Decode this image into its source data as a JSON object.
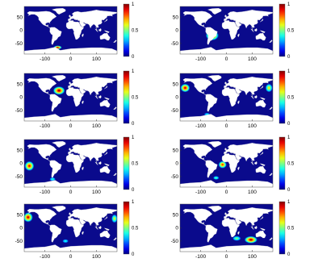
{
  "chart_data": [
    {
      "type": "heatmap",
      "title": "",
      "xlabel": "",
      "ylabel": "",
      "xlim": [
        -180,
        180
      ],
      "ylim": [
        -90,
        90
      ],
      "xticks": [
        "-100",
        "0",
        "100"
      ],
      "yticks": [
        "50",
        "0",
        "-50"
      ],
      "colorbar": {
        "range": [
          0,
          1
        ],
        "ticks": [
          "1",
          "0.5",
          "0"
        ]
      },
      "hotspots": [
        {
          "lon": -50,
          "lat": -65,
          "intensity": 1.0,
          "spread_lon": 14,
          "spread_lat": 6
        }
      ]
    },
    {
      "type": "heatmap",
      "title": "",
      "xlabel": "",
      "ylabel": "",
      "xlim": [
        -180,
        180
      ],
      "ylim": [
        -90,
        90
      ],
      "xticks": [
        "-100",
        "0",
        "100"
      ],
      "yticks": [
        "50",
        "0",
        "-50"
      ],
      "colorbar": {
        "range": [
          0,
          1
        ],
        "ticks": [
          "1",
          "0.5",
          "0"
        ]
      },
      "hotspots": [
        {
          "lon": -55,
          "lat": -20,
          "intensity": 0.95,
          "spread_lon": 22,
          "spread_lat": 16
        }
      ]
    },
    {
      "type": "heatmap",
      "title": "",
      "xlabel": "",
      "ylabel": "",
      "xlim": [
        -180,
        180
      ],
      "ylim": [
        -90,
        90
      ],
      "xticks": [
        "-100",
        "0",
        "100"
      ],
      "yticks": [
        "50",
        "0",
        "-50"
      ],
      "colorbar": {
        "range": [
          0,
          1
        ],
        "ticks": [
          "1",
          "0.5",
          "0"
        ]
      },
      "hotspots": [
        {
          "lon": -45,
          "lat": 25,
          "intensity": 1.0,
          "spread_lon": 20,
          "spread_lat": 14
        }
      ]
    },
    {
      "type": "heatmap",
      "title": "",
      "xlabel": "",
      "ylabel": "",
      "xlim": [
        -180,
        180
      ],
      "ylim": [
        -90,
        90
      ],
      "xticks": [
        "-100",
        "0",
        "100"
      ],
      "yticks": [
        "50",
        "0",
        "-50"
      ],
      "colorbar": {
        "range": [
          0,
          1
        ],
        "ticks": [
          "1",
          "0.5",
          "0"
        ]
      },
      "hotspots": [
        {
          "lon": -160,
          "lat": 35,
          "intensity": 0.95,
          "spread_lon": 16,
          "spread_lat": 14
        },
        {
          "lon": 165,
          "lat": 35,
          "intensity": 0.6,
          "spread_lon": 12,
          "spread_lat": 14
        },
        {
          "lon": -75,
          "lat": -65,
          "intensity": 0.3,
          "spread_lon": 10,
          "spread_lat": 5
        }
      ]
    },
    {
      "type": "heatmap",
      "title": "",
      "xlabel": "",
      "ylabel": "",
      "xlim": [
        -180,
        180
      ],
      "ylim": [
        -90,
        90
      ],
      "xticks": [
        "-100",
        "0",
        "100"
      ],
      "yticks": [
        "50",
        "0",
        "-50"
      ],
      "colorbar": {
        "range": [
          0,
          1
        ],
        "ticks": [
          "1",
          "0.5",
          "0"
        ]
      },
      "hotspots": [
        {
          "lon": -160,
          "lat": -10,
          "intensity": 0.9,
          "spread_lon": 16,
          "spread_lat": 16
        },
        {
          "lon": -70,
          "lat": -60,
          "intensity": 0.35,
          "spread_lon": 10,
          "spread_lat": 6
        }
      ]
    },
    {
      "type": "heatmap",
      "title": "",
      "xlabel": "",
      "ylabel": "",
      "xlim": [
        -180,
        180
      ],
      "ylim": [
        -90,
        90
      ],
      "xticks": [
        "-100",
        "0",
        "100"
      ],
      "yticks": [
        "50",
        "0",
        "-50"
      ],
      "colorbar": {
        "range": [
          0,
          1
        ],
        "ticks": [
          "1",
          "0.5",
          "0"
        ]
      },
      "hotspots": [
        {
          "lon": -15,
          "lat": -5,
          "intensity": 0.85,
          "spread_lon": 14,
          "spread_lat": 12
        },
        {
          "lon": -40,
          "lat": -55,
          "intensity": 0.4,
          "spread_lon": 10,
          "spread_lat": 6
        }
      ]
    },
    {
      "type": "heatmap",
      "title": "",
      "xlabel": "",
      "ylabel": "",
      "xlim": [
        -180,
        180
      ],
      "ylim": [
        -90,
        90
      ],
      "xticks": [
        "-100",
        "0",
        "100"
      ],
      "yticks": [
        "50",
        "0",
        "-50"
      ],
      "colorbar": {
        "range": [
          0,
          1
        ],
        "ticks": [
          "1",
          "0.5",
          "0"
        ]
      },
      "hotspots": [
        {
          "lon": -165,
          "lat": 40,
          "intensity": 0.95,
          "spread_lon": 16,
          "spread_lat": 16
        },
        {
          "lon": 170,
          "lat": 35,
          "intensity": 0.55,
          "spread_lon": 10,
          "spread_lat": 14
        },
        {
          "lon": -20,
          "lat": -50,
          "intensity": 0.3,
          "spread_lon": 10,
          "spread_lat": 6
        }
      ]
    },
    {
      "type": "heatmap",
      "title": "",
      "xlabel": "",
      "ylabel": "",
      "xlim": [
        -180,
        180
      ],
      "ylim": [
        -90,
        90
      ],
      "xticks": [
        "-100",
        "0",
        "100"
      ],
      "yticks": [
        "50",
        "0",
        "-50"
      ],
      "colorbar": {
        "range": [
          0,
          1
        ],
        "ticks": [
          "1",
          "0.5",
          "0"
        ]
      },
      "hotspots": [
        {
          "lon": 95,
          "lat": -45,
          "intensity": 1.0,
          "spread_lon": 22,
          "spread_lat": 12
        },
        {
          "lon": 40,
          "lat": -40,
          "intensity": 0.45,
          "spread_lon": 14,
          "spread_lat": 8
        }
      ]
    }
  ],
  "style": {
    "ocean_color": "#0a0a8c",
    "land_color": "#ffffff",
    "colormap": [
      "#00008f",
      "#0000ff",
      "#00ffff",
      "#ffff00",
      "#ff0000",
      "#800000"
    ]
  }
}
